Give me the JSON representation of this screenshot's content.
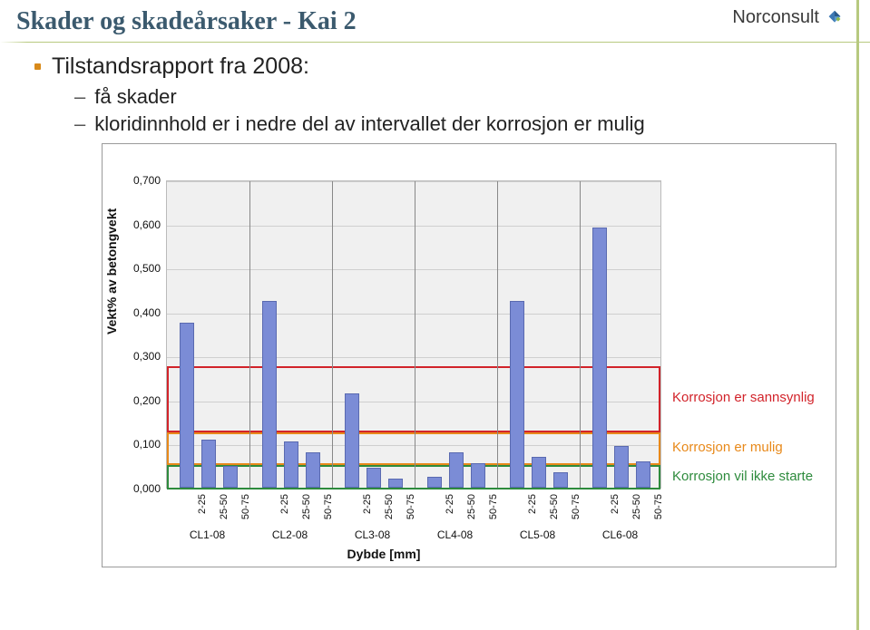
{
  "header": {
    "title": "Skader og skadeårsaker - Kai 2",
    "logo_text": "Norconsult"
  },
  "bullets": {
    "main": "Tilstandsrapport fra 2008:",
    "sub1": "få skader",
    "sub2": "kloridinnhold er i nedre del av intervallet der korrosjon er mulig"
  },
  "chart": {
    "type": "bar",
    "ylabel": "Vekt% av betongvekt",
    "xlabel": "Dybde [mm]",
    "ylim": [
      0,
      0.7
    ],
    "ytick_step": 0.1,
    "yticks": [
      "0,000",
      "0,100",
      "0,200",
      "0,300",
      "0,400",
      "0,500",
      "0,600",
      "0,700"
    ],
    "bar_color": "#7b8cd6",
    "bar_border": "#5a6ab0",
    "plot_bg": "#f0f0f0",
    "grid_color": "#cfcfcf",
    "depth_labels": [
      "2-25",
      "25-50",
      "50-75"
    ],
    "groups": [
      "CL1-08",
      "CL2-08",
      "CL3-08",
      "CL4-08",
      "CL5-08",
      "CL6-08"
    ],
    "values": [
      [
        0.375,
        0.11,
        0.05
      ],
      [
        0.425,
        0.105,
        0.08
      ],
      [
        0.215,
        0.045,
        0.02
      ],
      [
        0.025,
        0.08,
        0.055
      ],
      [
        0.425,
        0.07,
        0.035
      ],
      [
        0.59,
        0.095,
        0.06
      ]
    ],
    "zones": [
      {
        "label": "Korrosjon er sannsynlig",
        "color": "#d2232a",
        "from": 0.13,
        "to": 0.28
      },
      {
        "label": "Korrosjon er mulig",
        "color": "#e8891a",
        "from": 0.055,
        "to": 0.13
      },
      {
        "label": "Korrosjon vil ikke starte",
        "color": "#2e8b3d",
        "from": 0.0,
        "to": 0.055
      }
    ]
  }
}
